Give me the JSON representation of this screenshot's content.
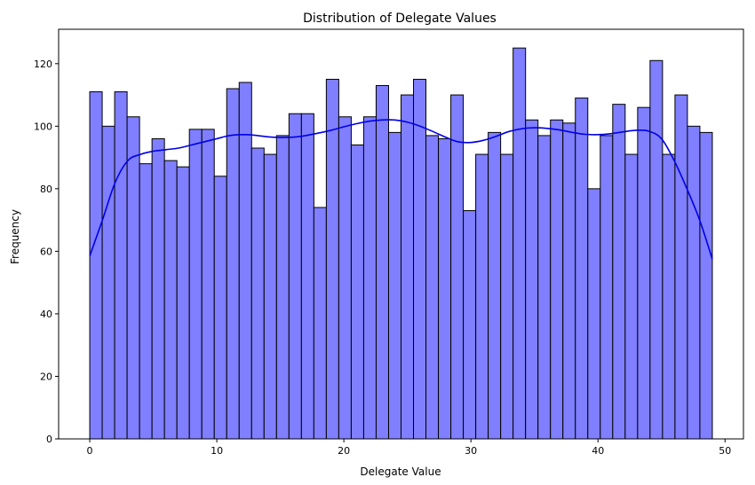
{
  "chart_data": {
    "type": "bar",
    "title": "Distribution of Delegate Values",
    "xlabel": "Delegate Value",
    "ylabel": "Frequency",
    "xlim": [
      -2.45,
      51.45
    ],
    "ylim": [
      0,
      131
    ],
    "xticks": [
      0,
      10,
      20,
      30,
      40,
      50
    ],
    "yticks": [
      0,
      20,
      40,
      60,
      80,
      100,
      120
    ],
    "bin_edges_start": 0,
    "bin_width": 0.98,
    "values": [
      111,
      100,
      111,
      103,
      88,
      96,
      89,
      87,
      99,
      99,
      84,
      112,
      114,
      93,
      91,
      97,
      104,
      104,
      74,
      115,
      103,
      94,
      103,
      113,
      98,
      110,
      115,
      97,
      96,
      110,
      73,
      91,
      98,
      91,
      125,
      102,
      97,
      102,
      101,
      109,
      80,
      97,
      107,
      91,
      106,
      121,
      91,
      110,
      100,
      98
    ],
    "kde": {
      "x": [
        0,
        1,
        2,
        3,
        4,
        5,
        6,
        7,
        8,
        9,
        10,
        11,
        12,
        13,
        14,
        15,
        16,
        17,
        18,
        19,
        20,
        21,
        22,
        23,
        24,
        25,
        26,
        27,
        28,
        29,
        30,
        31,
        32,
        33,
        34,
        35,
        36,
        37,
        38,
        39,
        40,
        41,
        42,
        43,
        44,
        45,
        46,
        47,
        48,
        49
      ],
      "y": [
        58.5,
        70,
        82,
        89,
        91,
        92,
        92.5,
        93,
        94,
        95,
        96,
        97,
        97.3,
        97.1,
        96.6,
        96.4,
        96.5,
        97,
        97.8,
        98.7,
        99.8,
        100.8,
        101.6,
        102,
        102,
        101.3,
        100,
        98.3,
        96.5,
        95,
        94.8,
        95.5,
        96.8,
        98.3,
        99.2,
        99.5,
        99.3,
        98.8,
        98,
        97.4,
        97.3,
        97.6,
        98.2,
        98.7,
        98.4,
        96,
        89,
        80,
        70,
        57.5
      ]
    },
    "colors": {
      "bar_fill": "#7f7fff",
      "bar_edge": "#000000",
      "kde_line": "#0000e6"
    },
    "grid": false,
    "legend": "none"
  }
}
